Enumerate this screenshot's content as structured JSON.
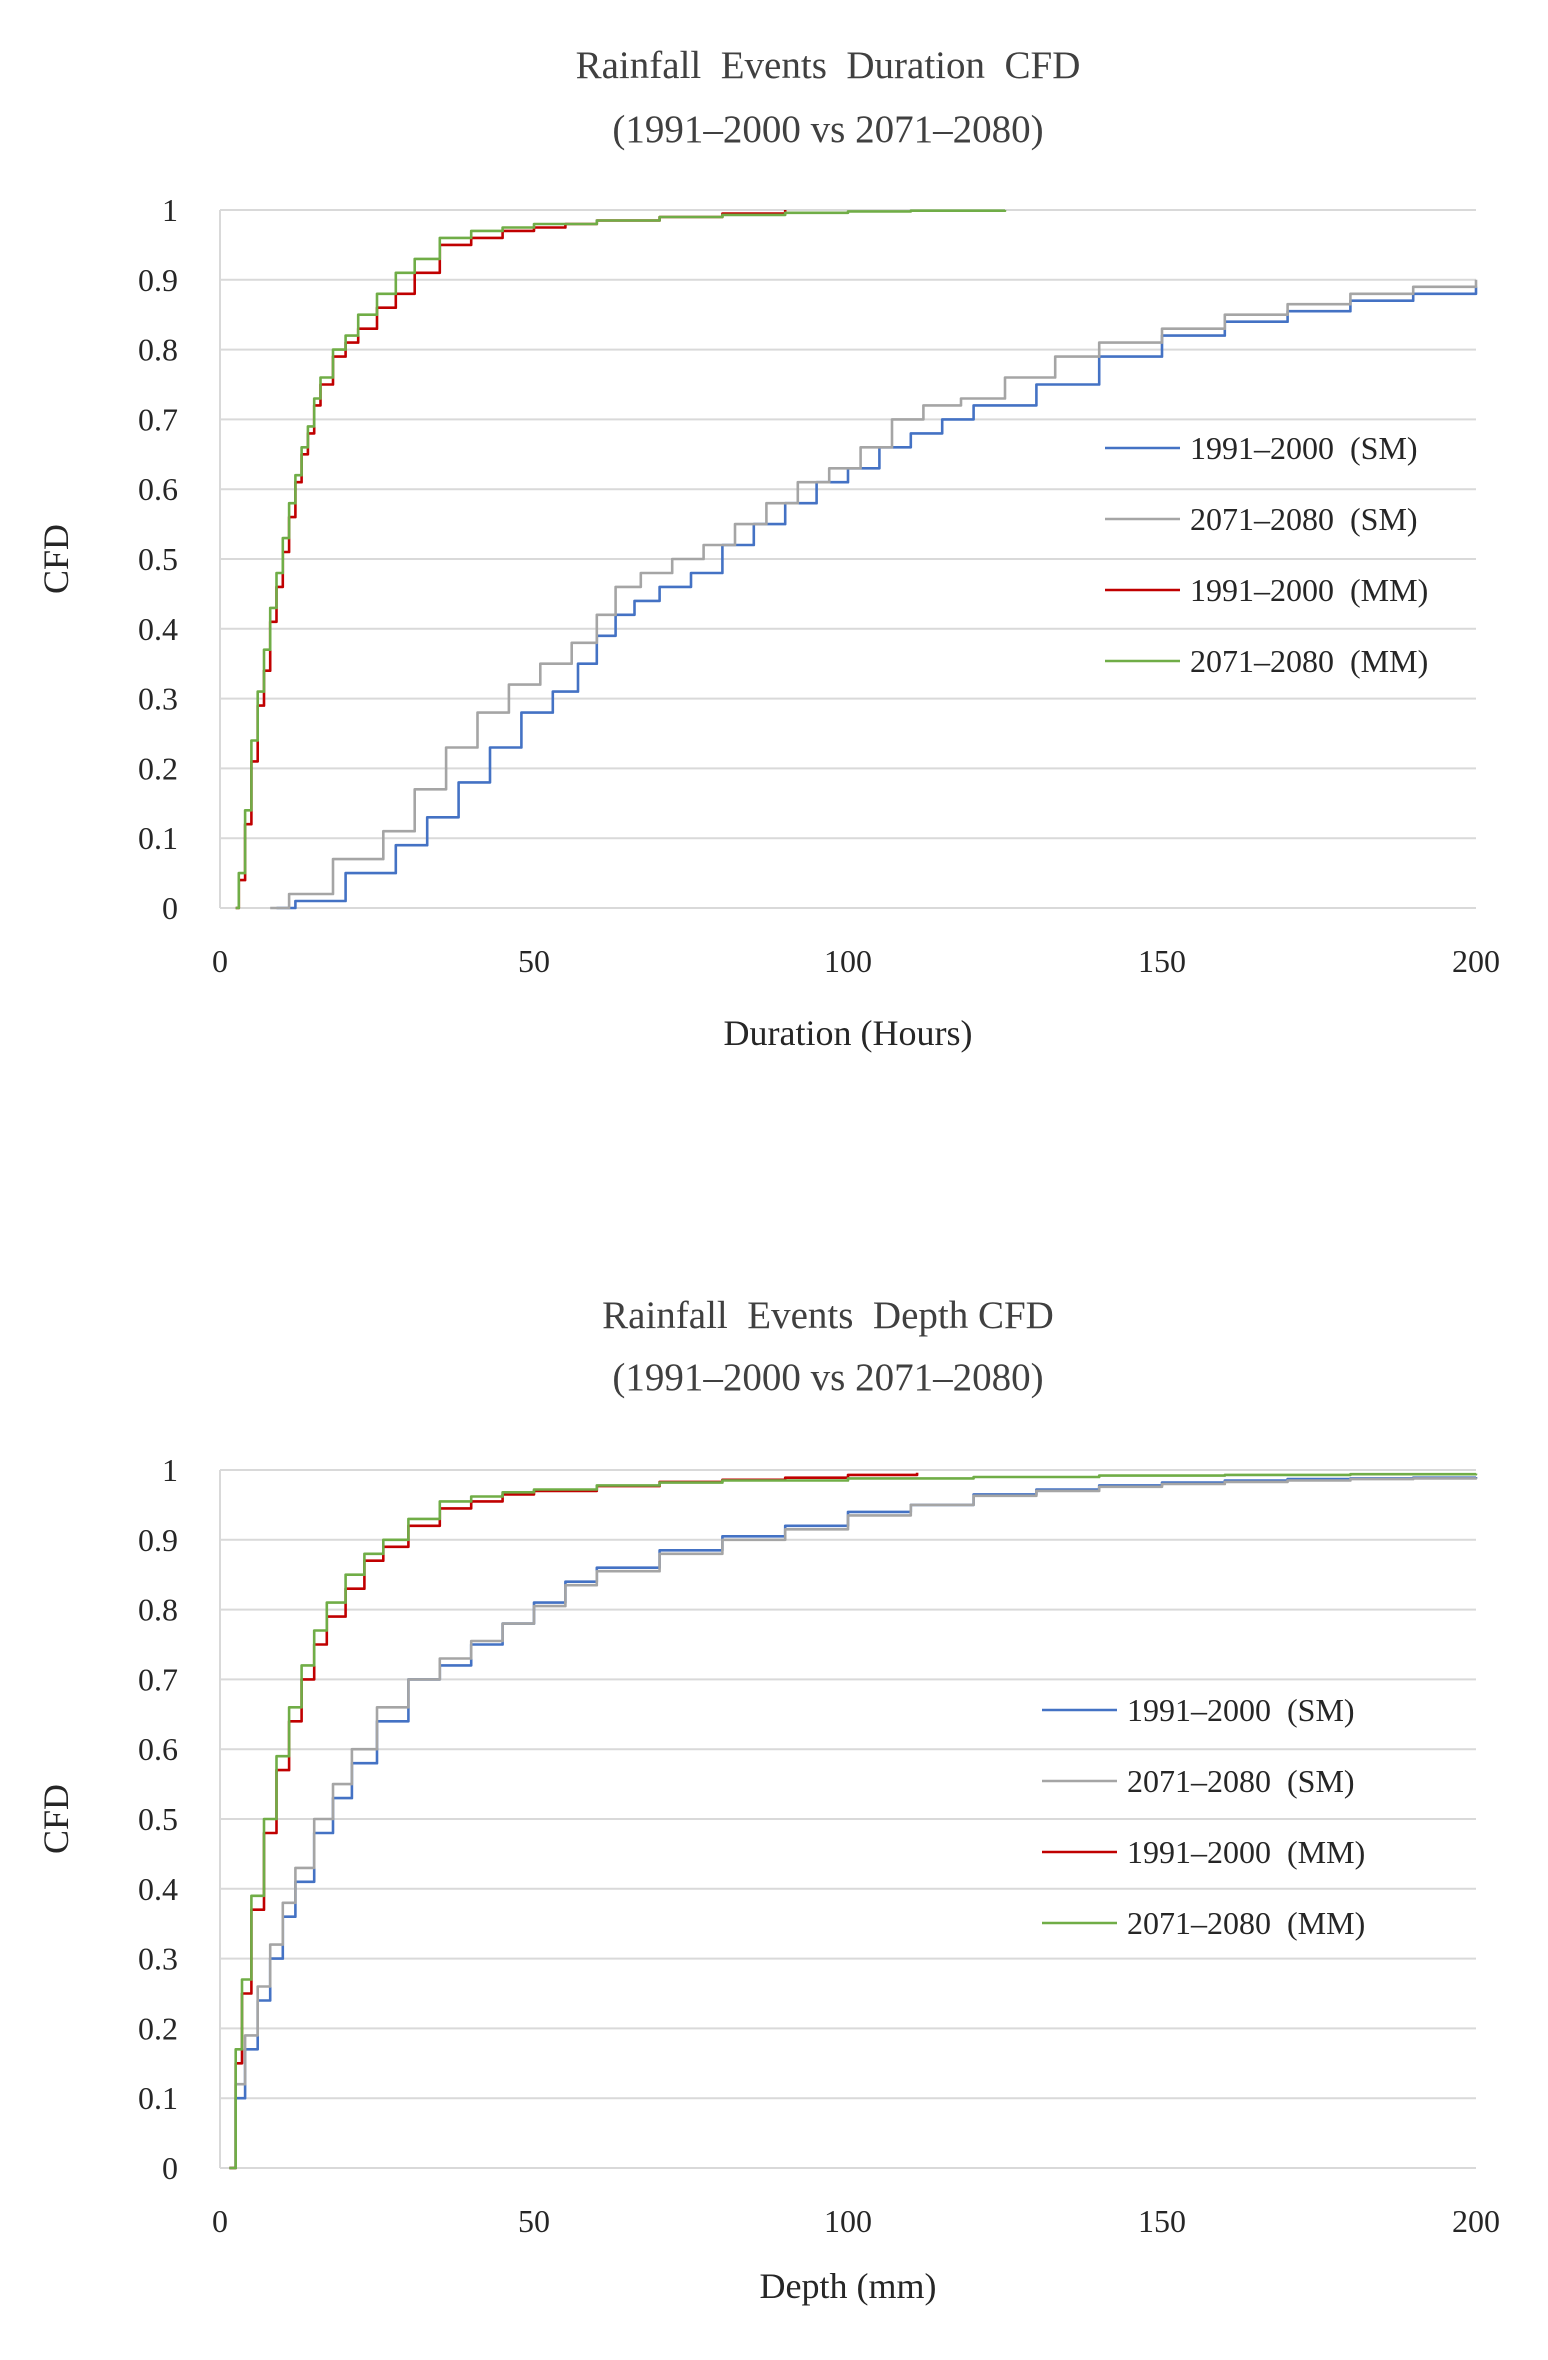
{
  "chart_data": [
    {
      "type": "line",
      "title": "Rainfall  Events  Duration  CFD",
      "subtitle": "(1991–2000 vs 2071–2080)",
      "xlabel": "Duration (Hours)",
      "ylabel": "CFD",
      "xlim": [
        0,
        200
      ],
      "ylim": [
        0,
        1
      ],
      "x_ticks": [
        "0",
        "50",
        "100",
        "150",
        "200"
      ],
      "y_ticks": [
        "0",
        "0.1",
        "0.2",
        "0.3",
        "0.4",
        "0.5",
        "0.6",
        "0.7",
        "0.8",
        "0.9",
        "1"
      ],
      "grid": true,
      "legend_position": "right",
      "series": [
        {
          "name": "1991–2000  (SM)",
          "color": "#4472c4",
          "x": [
            9,
            12,
            20,
            28,
            33,
            38,
            43,
            48,
            53,
            57,
            60,
            63,
            66,
            70,
            75,
            80,
            85,
            90,
            95,
            100,
            105,
            110,
            115,
            120,
            130,
            140,
            150,
            160,
            170,
            180,
            190,
            200
          ],
          "y": [
            0,
            0.01,
            0.05,
            0.09,
            0.13,
            0.18,
            0.23,
            0.28,
            0.31,
            0.35,
            0.39,
            0.42,
            0.44,
            0.46,
            0.48,
            0.52,
            0.55,
            0.58,
            0.61,
            0.63,
            0.66,
            0.68,
            0.7,
            0.72,
            0.75,
            0.79,
            0.82,
            0.84,
            0.855,
            0.87,
            0.88,
            0.89
          ]
        },
        {
          "name": "2071–2080  (SM)",
          "color": "#a5a5a5",
          "x": [
            8,
            11,
            18,
            26,
            31,
            36,
            41,
            46,
            51,
            56,
            60,
            63,
            67,
            72,
            77,
            82,
            87,
            92,
            97,
            102,
            107,
            112,
            118,
            125,
            133,
            140,
            150,
            160,
            170,
            180,
            190,
            200
          ],
          "y": [
            0,
            0.02,
            0.07,
            0.11,
            0.17,
            0.23,
            0.28,
            0.32,
            0.35,
            0.38,
            0.42,
            0.46,
            0.48,
            0.5,
            0.52,
            0.55,
            0.58,
            0.61,
            0.63,
            0.66,
            0.7,
            0.72,
            0.73,
            0.76,
            0.79,
            0.81,
            0.83,
            0.85,
            0.865,
            0.88,
            0.89,
            0.9
          ]
        },
        {
          "name": "1991–2000  (MM)",
          "color": "#c00000",
          "x": [
            2.5,
            3,
            4,
            5,
            6,
            7,
            8,
            9,
            10,
            11,
            12,
            13,
            14,
            15,
            16,
            18,
            20,
            22,
            25,
            28,
            31,
            35,
            40,
            45,
            50,
            55,
            60,
            70,
            80,
            90
          ],
          "y": [
            0,
            0.04,
            0.12,
            0.21,
            0.29,
            0.34,
            0.41,
            0.46,
            0.51,
            0.56,
            0.61,
            0.65,
            0.68,
            0.72,
            0.75,
            0.79,
            0.81,
            0.83,
            0.86,
            0.88,
            0.91,
            0.95,
            0.96,
            0.97,
            0.975,
            0.98,
            0.985,
            0.99,
            0.995,
            1
          ]
        },
        {
          "name": "2071–2080  (MM)",
          "color": "#70ad47",
          "x": [
            2.5,
            3,
            4,
            5,
            6,
            7,
            8,
            9,
            10,
            11,
            12,
            13,
            14,
            15,
            16,
            18,
            20,
            22,
            25,
            28,
            31,
            35,
            40,
            45,
            50,
            60,
            70,
            80,
            90,
            100,
            110,
            125
          ],
          "y": [
            0,
            0.05,
            0.14,
            0.24,
            0.31,
            0.37,
            0.43,
            0.48,
            0.53,
            0.58,
            0.62,
            0.66,
            0.69,
            0.73,
            0.76,
            0.8,
            0.82,
            0.85,
            0.88,
            0.91,
            0.93,
            0.96,
            0.97,
            0.975,
            0.98,
            0.985,
            0.99,
            0.993,
            0.996,
            0.998,
            0.999,
            1
          ]
        }
      ]
    },
    {
      "type": "line",
      "title": "Rainfall  Events  Depth CFD",
      "subtitle": "(1991–2000 vs 2071–2080)",
      "xlabel": "Depth (mm)",
      "ylabel": "CFD",
      "xlim": [
        0,
        200
      ],
      "ylim": [
        0,
        1
      ],
      "x_ticks": [
        "0",
        "50",
        "100",
        "150",
        "200"
      ],
      "y_ticks": [
        "0",
        "0.1",
        "0.2",
        "0.3",
        "0.4",
        "0.5",
        "0.6",
        "0.7",
        "0.8",
        "0.9",
        "1"
      ],
      "grid": true,
      "legend_position": "right",
      "series": [
        {
          "name": "1991–2000  (SM)",
          "color": "#4472c4",
          "x": [
            1.5,
            2.5,
            4,
            6,
            8,
            10,
            12,
            15,
            18,
            21,
            25,
            30,
            35,
            40,
            45,
            50,
            55,
            60,
            70,
            80,
            90,
            100,
            110,
            120,
            130,
            140,
            150,
            160,
            170,
            180,
            190,
            200
          ],
          "y": [
            0,
            0.1,
            0.17,
            0.24,
            0.3,
            0.36,
            0.41,
            0.48,
            0.53,
            0.58,
            0.64,
            0.7,
            0.72,
            0.75,
            0.78,
            0.81,
            0.84,
            0.86,
            0.885,
            0.905,
            0.92,
            0.94,
            0.95,
            0.965,
            0.972,
            0.978,
            0.982,
            0.985,
            0.987,
            0.988,
            0.989,
            0.99
          ]
        },
        {
          "name": "2071–2080  (SM)",
          "color": "#a5a5a5",
          "x": [
            1.5,
            2.5,
            4,
            6,
            8,
            10,
            12,
            15,
            18,
            21,
            25,
            30,
            35,
            40,
            45,
            50,
            55,
            60,
            70,
            80,
            90,
            100,
            110,
            120,
            130,
            140,
            150,
            160,
            170,
            180,
            190,
            200
          ],
          "y": [
            0,
            0.12,
            0.19,
            0.26,
            0.32,
            0.38,
            0.43,
            0.5,
            0.55,
            0.6,
            0.66,
            0.7,
            0.73,
            0.755,
            0.78,
            0.805,
            0.835,
            0.855,
            0.88,
            0.9,
            0.915,
            0.935,
            0.95,
            0.963,
            0.97,
            0.976,
            0.98,
            0.983,
            0.985,
            0.987,
            0.988,
            0.989
          ]
        },
        {
          "name": "1991–2000  (MM)",
          "color": "#c00000",
          "x": [
            1.5,
            2.5,
            3.5,
            5,
            7,
            9,
            11,
            13,
            15,
            17,
            20,
            23,
            26,
            30,
            35,
            40,
            45,
            50,
            60,
            70,
            80,
            90,
            100,
            111
          ],
          "y": [
            0,
            0.15,
            0.25,
            0.37,
            0.48,
            0.57,
            0.64,
            0.7,
            0.75,
            0.79,
            0.83,
            0.87,
            0.89,
            0.92,
            0.945,
            0.955,
            0.965,
            0.97,
            0.977,
            0.983,
            0.986,
            0.989,
            0.993,
            0.996
          ]
        },
        {
          "name": "2071–2080  (MM)",
          "color": "#70ad47",
          "x": [
            1.5,
            2.5,
            3.5,
            5,
            7,
            9,
            11,
            13,
            15,
            17,
            20,
            23,
            26,
            30,
            35,
            40,
            45,
            50,
            60,
            70,
            80,
            100,
            120,
            140,
            160,
            180,
            200
          ],
          "y": [
            0,
            0.17,
            0.27,
            0.39,
            0.5,
            0.59,
            0.66,
            0.72,
            0.77,
            0.81,
            0.85,
            0.88,
            0.9,
            0.93,
            0.955,
            0.962,
            0.968,
            0.972,
            0.978,
            0.982,
            0.985,
            0.988,
            0.99,
            0.992,
            0.993,
            0.994,
            0.995
          ]
        }
      ]
    }
  ]
}
